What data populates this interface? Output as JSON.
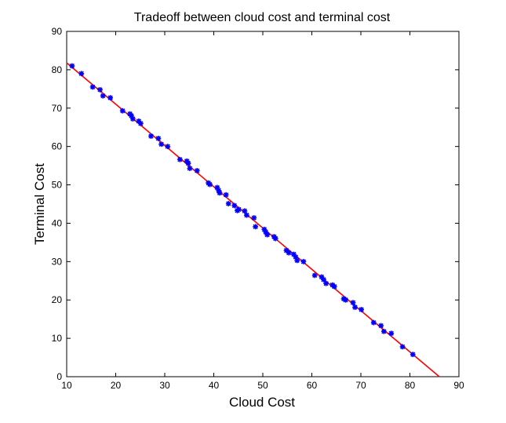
{
  "chart_data": {
    "type": "scatter",
    "title": "Tradeoff between cloud cost and terminal cost",
    "xlabel": "Cloud Cost",
    "ylabel": "Terminal Cost",
    "xlim": [
      10,
      90
    ],
    "ylim": [
      0,
      90
    ],
    "xticks": [
      10,
      20,
      30,
      40,
      50,
      60,
      70,
      80,
      90
    ],
    "yticks": [
      0,
      10,
      20,
      30,
      40,
      50,
      60,
      70,
      80,
      90
    ],
    "grid": false,
    "legend": "none",
    "series": [
      {
        "type": "scatter",
        "marker": "asterisk",
        "color": "#0000ff",
        "x": [
          11.1,
          13.0,
          15.3,
          16.8,
          17.4,
          18.9,
          21.4,
          22.9,
          23.2,
          23.5,
          24.7,
          25.1,
          27.2,
          28.7,
          29.3,
          30.6,
          33.1,
          34.5,
          34.8,
          35.1,
          36.6,
          38.9,
          39.2,
          40.7,
          41.0,
          41.2,
          42.5,
          43.0,
          44.2,
          44.8,
          45.1,
          46.3,
          46.7,
          48.2,
          48.5,
          50.3,
          50.6,
          50.9,
          52.3,
          52.6,
          54.8,
          55.3,
          56.3,
          56.7,
          57.0,
          58.3,
          60.6,
          62.0,
          62.4,
          62.9,
          64.2,
          64.6,
          66.5,
          66.9,
          68.4,
          68.8,
          70.1,
          72.6,
          74.1,
          74.7,
          76.2,
          78.5,
          80.6
        ],
        "y": [
          81.0,
          79.0,
          75.5,
          74.8,
          73.2,
          72.7,
          69.3,
          68.5,
          68.0,
          67.2,
          66.6,
          66.0,
          62.7,
          62.1,
          60.6,
          60.0,
          56.6,
          56.2,
          55.6,
          54.3,
          53.7,
          50.5,
          50.1,
          49.3,
          48.5,
          47.9,
          47.4,
          45.1,
          44.6,
          43.3,
          43.6,
          43.2,
          42.1,
          41.4,
          39.1,
          38.4,
          37.7,
          37.0,
          36.5,
          36.0,
          32.9,
          32.3,
          31.9,
          31.2,
          30.3,
          30.0,
          26.4,
          26.0,
          25.3,
          24.3,
          23.9,
          23.5,
          20.3,
          20.0,
          19.3,
          18.1,
          17.5,
          14.1,
          13.3,
          11.8,
          11.3,
          7.8,
          5.8
        ]
      },
      {
        "type": "line",
        "color": "#ff0000",
        "x": [
          10,
          86
        ],
        "y": [
          81.8,
          0
        ]
      }
    ]
  }
}
